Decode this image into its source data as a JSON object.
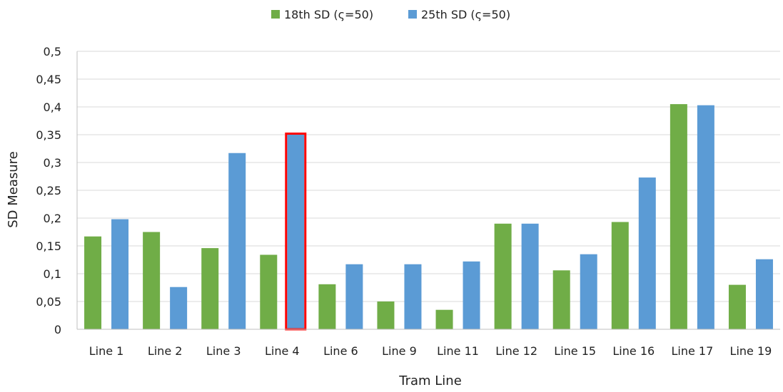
{
  "chart_data": {
    "type": "bar",
    "xlabel": "Tram Line",
    "ylabel": "SD Measure",
    "ylim": [
      0,
      0.5
    ],
    "yticks": [
      "0",
      "0,05",
      "0,1",
      "0,15",
      "0,2",
      "0,25",
      "0,3",
      "0,35",
      "0,4",
      "0,45",
      "0,5"
    ],
    "grid": true,
    "legend_position": "top",
    "categories": [
      "Line 1",
      "Line 2",
      "Line 3",
      "Line 4",
      "Line 6",
      "Line 9",
      "Line 11",
      "Line 12",
      "Line 15",
      "Line 16",
      "Line 17",
      "Line 19"
    ],
    "series": [
      {
        "name": "18th SD (ς=50)",
        "color": "#70ad47",
        "values": [
          0.167,
          0.175,
          0.146,
          0.134,
          0.081,
          0.05,
          0.035,
          0.19,
          0.106,
          0.193,
          0.405,
          0.08
        ]
      },
      {
        "name": "25th SD (ς=50)",
        "color": "#5b9bd5",
        "values": [
          0.198,
          0.076,
          0.317,
          0.35,
          0.117,
          0.117,
          0.122,
          0.19,
          0.135,
          0.273,
          0.403,
          0.126
        ]
      }
    ],
    "highlight": {
      "category": "Line 4",
      "series": "25th SD (ς=50)",
      "color": "#ff0000"
    }
  }
}
